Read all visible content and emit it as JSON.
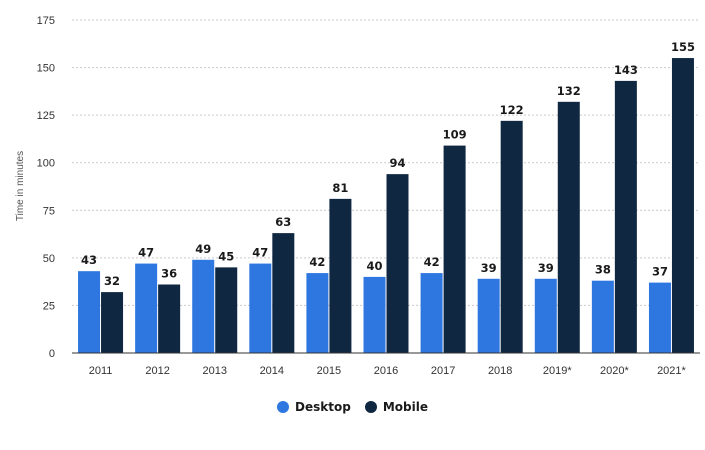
{
  "chart_data": {
    "type": "bar",
    "categories": [
      "2011",
      "2012",
      "2013",
      "2014",
      "2015",
      "2016",
      "2017",
      "2018",
      "2019*",
      "2020*",
      "2021*"
    ],
    "series": [
      {
        "name": "Desktop",
        "color": "#2f77e0",
        "values": [
          43,
          47,
          49,
          47,
          42,
          40,
          42,
          39,
          39,
          38,
          37
        ]
      },
      {
        "name": "Mobile",
        "color": "#0f2740",
        "values": [
          32,
          36,
          45,
          63,
          81,
          94,
          109,
          122,
          132,
          143,
          155
        ]
      }
    ],
    "title": "",
    "xlabel": "",
    "ylabel": "Time in minutes",
    "ylim": [
      0,
      175
    ],
    "yticks": [
      0,
      25,
      50,
      75,
      100,
      125,
      150,
      175
    ],
    "grid": true,
    "legend_position": "bottom-center"
  }
}
